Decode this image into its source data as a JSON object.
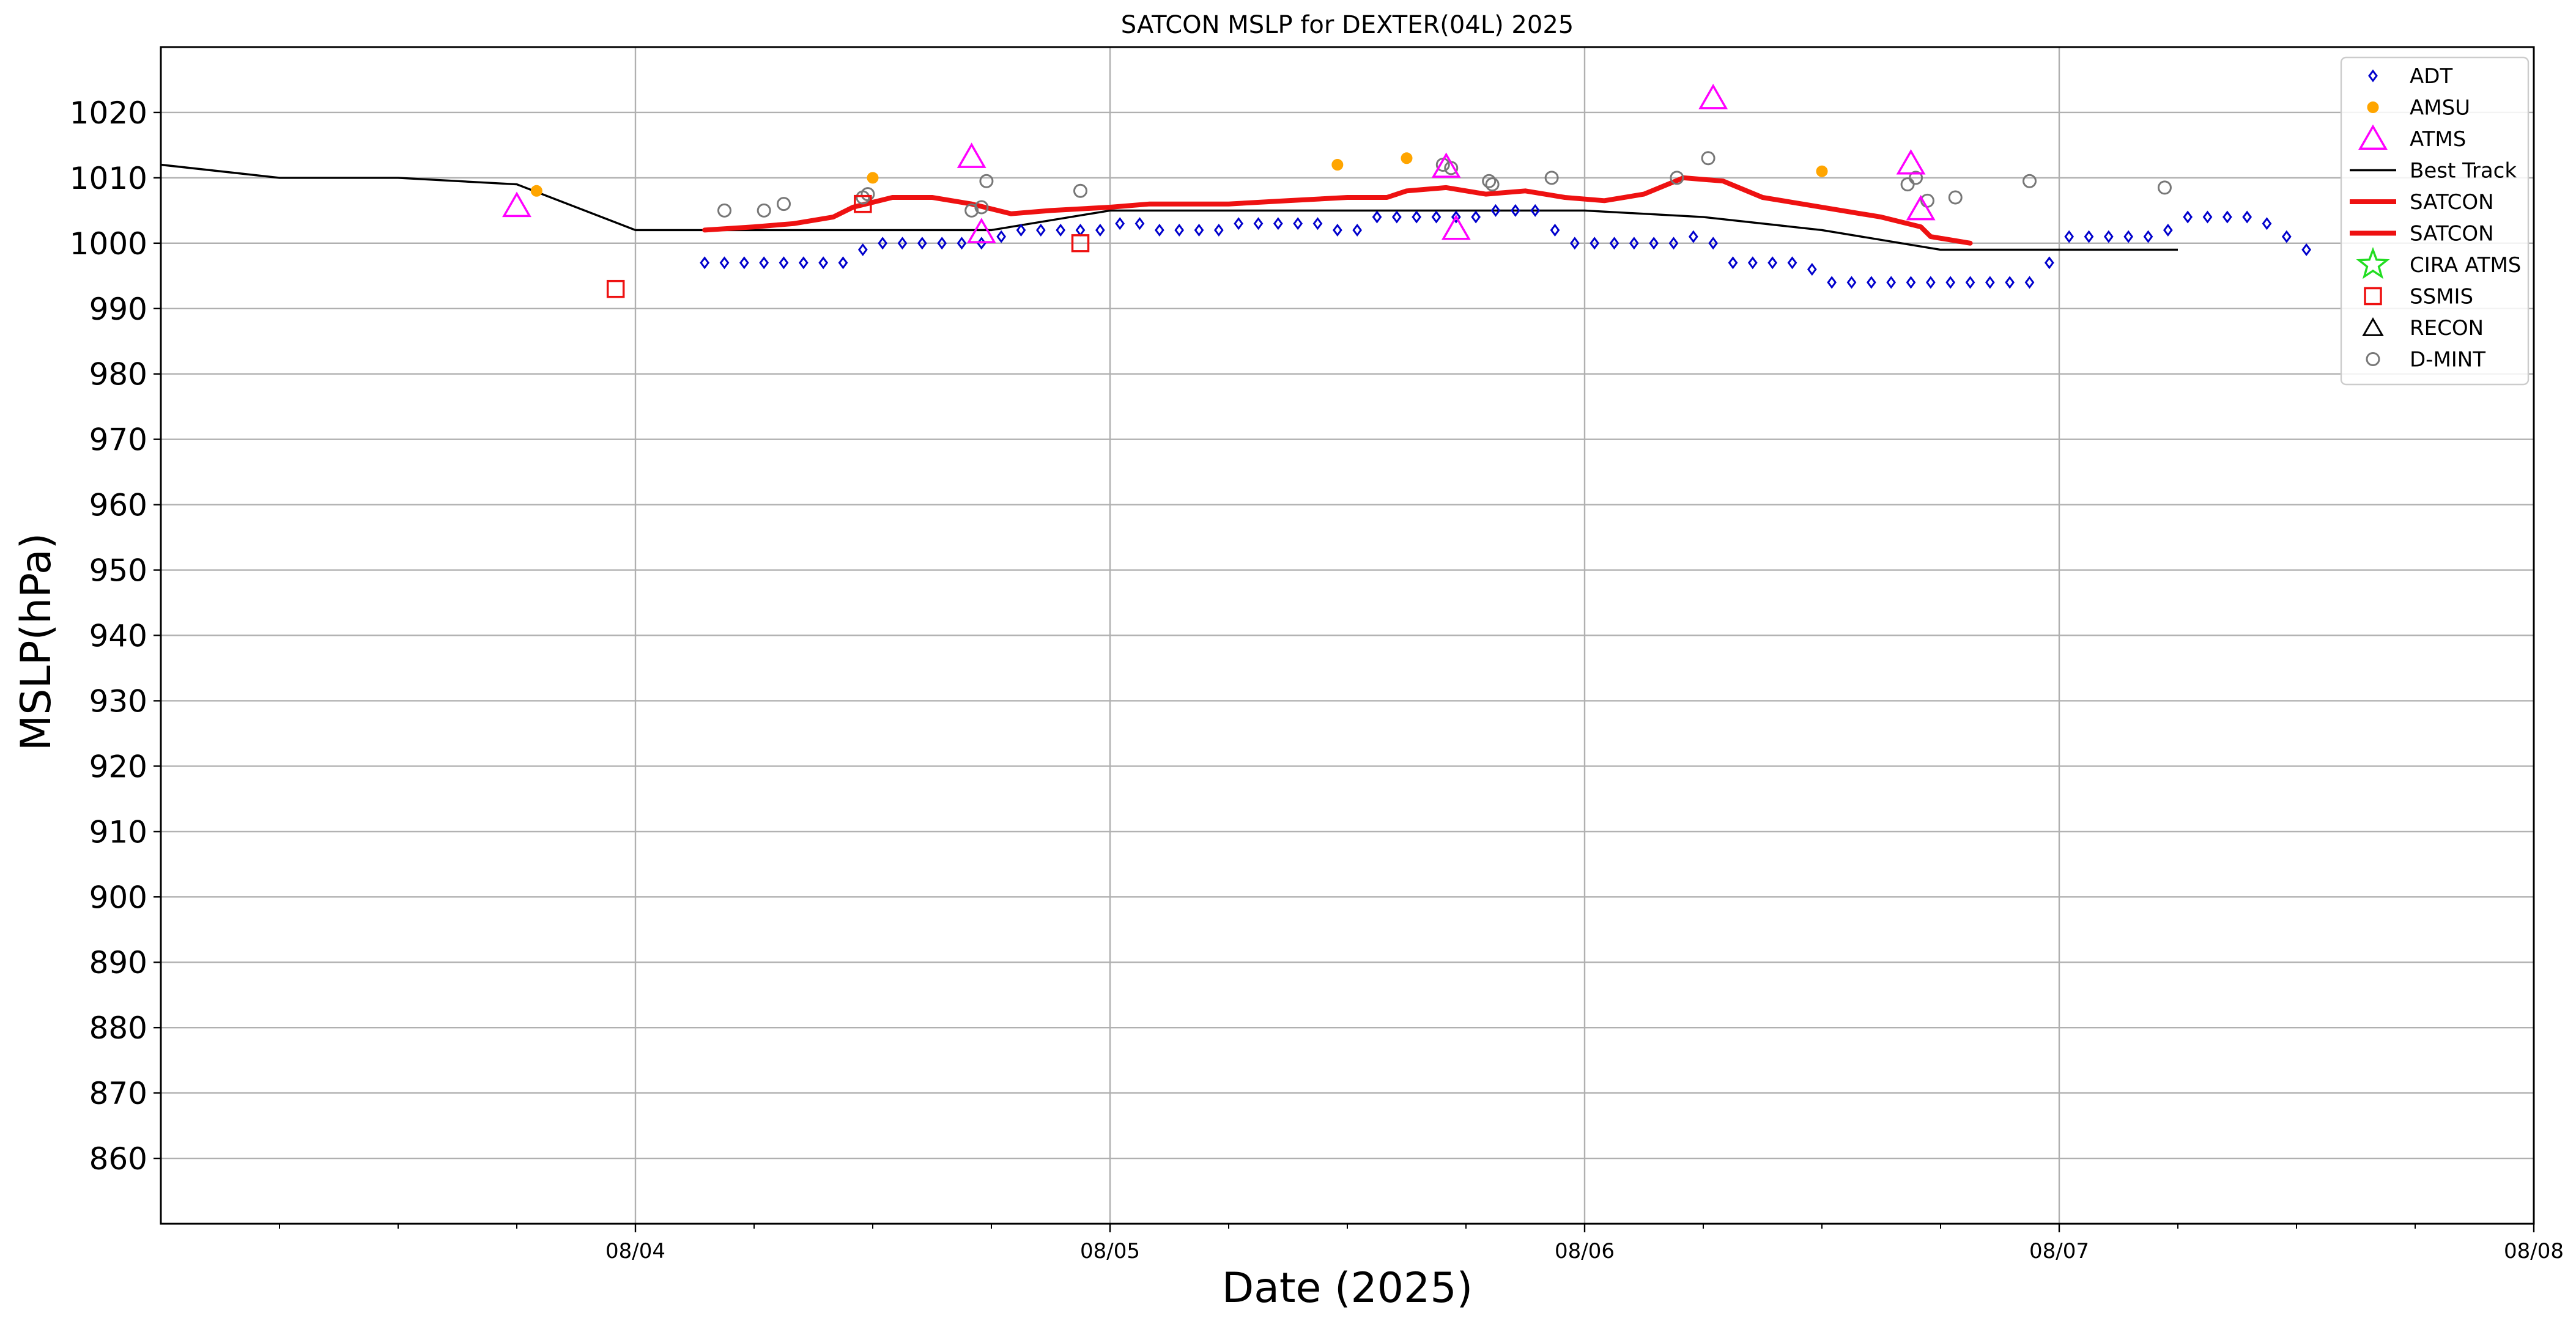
{
  "chart_data": {
    "type": "scatter",
    "title": "SATCON MSLP for DEXTER(04L) 2025",
    "xlabel": "Date (2025)",
    "ylabel": "MSLP(hPa)",
    "x_ticks": [
      "08/04",
      "08/05",
      "08/06",
      "08/07",
      "08/08"
    ],
    "xlim": [
      "2025-08-03T00:00",
      "2025-08-08T00:00"
    ],
    "y_ticks": [
      "860",
      "870",
      "880",
      "890",
      "900",
      "910",
      "920",
      "930",
      "940",
      "950",
      "960",
      "970",
      "980",
      "990",
      "1000",
      "1010",
      "1020"
    ],
    "ylim": [
      850,
      1030
    ],
    "grid": true,
    "legend_position": "upper right",
    "legend": [
      "ADT",
      "AMSU",
      "ATMS",
      "Best Track",
      "SATCON",
      "SATCON",
      "CIRA ATMS",
      "SSMIS",
      "RECON",
      "D-MINT"
    ],
    "colors": {
      "ADT": "#0000cc",
      "AMSU": "#ffa500",
      "ATMS": "#ff00ff",
      "Best Track": "#000000",
      "SATCON": "#ee1111",
      "CIRA ATMS": "#22dd22",
      "SSMIS": "#ee1111",
      "RECON": "#000000",
      "D-MINT": "#777777"
    },
    "series": {
      "best_track": [
        [
          "2025-08-03T00:00",
          1012
        ],
        [
          "2025-08-03T06:00",
          1010
        ],
        [
          "2025-08-03T12:00",
          1010
        ],
        [
          "2025-08-03T18:00",
          1009
        ],
        [
          "2025-08-04T00:00",
          1002
        ],
        [
          "2025-08-04T06:00",
          1002
        ],
        [
          "2025-08-04T12:00",
          1002
        ],
        [
          "2025-08-04T18:00",
          1002
        ],
        [
          "2025-08-05T00:00",
          1005
        ],
        [
          "2025-08-05T06:00",
          1005
        ],
        [
          "2025-08-05T12:00",
          1005
        ],
        [
          "2025-08-05T18:00",
          1005
        ],
        [
          "2025-08-06T00:00",
          1005
        ],
        [
          "2025-08-06T06:00",
          1004
        ],
        [
          "2025-08-06T12:00",
          1002
        ],
        [
          "2025-08-06T18:00",
          999
        ],
        [
          "2025-08-07T00:00",
          999
        ],
        [
          "2025-08-07T06:00",
          999
        ]
      ],
      "satcon": [
        [
          "2025-08-04T03:30",
          1002
        ],
        [
          "2025-08-04T06:00",
          1002.5
        ],
        [
          "2025-08-04T08:00",
          1003
        ],
        [
          "2025-08-04T10:00",
          1004
        ],
        [
          "2025-08-04T11:00",
          1005.5
        ],
        [
          "2025-08-04T13:00",
          1007
        ],
        [
          "2025-08-04T15:00",
          1007
        ],
        [
          "2025-08-04T17:00",
          1006
        ],
        [
          "2025-08-04T19:00",
          1004.5
        ],
        [
          "2025-08-04T21:00",
          1005
        ],
        [
          "2025-08-05T00:00",
          1005.5
        ],
        [
          "2025-08-05T02:00",
          1006
        ],
        [
          "2025-08-05T06:00",
          1006
        ],
        [
          "2025-08-05T09:00",
          1006.5
        ],
        [
          "2025-08-05T12:00",
          1007
        ],
        [
          "2025-08-05T14:00",
          1007
        ],
        [
          "2025-08-05T15:00",
          1008
        ],
        [
          "2025-08-05T17:00",
          1008.5
        ],
        [
          "2025-08-05T19:00",
          1007.5
        ],
        [
          "2025-08-05T21:00",
          1008
        ],
        [
          "2025-08-05T23:00",
          1007
        ],
        [
          "2025-08-06T01:00",
          1006.5
        ],
        [
          "2025-08-06T03:00",
          1007.5
        ],
        [
          "2025-08-06T05:00",
          1010
        ],
        [
          "2025-08-06T07:00",
          1009.5
        ],
        [
          "2025-08-06T09:00",
          1007
        ],
        [
          "2025-08-06T11:00",
          1006
        ],
        [
          "2025-08-06T13:00",
          1005
        ],
        [
          "2025-08-06T15:00",
          1004
        ],
        [
          "2025-08-06T17:00",
          1002.5
        ],
        [
          "2025-08-06T17:30",
          1001
        ],
        [
          "2025-08-06T19:30",
          1000
        ]
      ],
      "adt": [
        [
          "2025-08-04T03:30",
          997
        ],
        [
          "2025-08-04T04:30",
          997
        ],
        [
          "2025-08-04T05:30",
          997
        ],
        [
          "2025-08-04T06:30",
          997
        ],
        [
          "2025-08-04T07:30",
          997
        ],
        [
          "2025-08-04T08:30",
          997
        ],
        [
          "2025-08-04T09:30",
          997
        ],
        [
          "2025-08-04T10:30",
          997
        ],
        [
          "2025-08-04T11:30",
          999
        ],
        [
          "2025-08-04T12:30",
          1000
        ],
        [
          "2025-08-04T13:30",
          1000
        ],
        [
          "2025-08-04T14:30",
          1000
        ],
        [
          "2025-08-04T15:30",
          1000
        ],
        [
          "2025-08-04T16:30",
          1000
        ],
        [
          "2025-08-04T17:30",
          1000
        ],
        [
          "2025-08-04T18:30",
          1001
        ],
        [
          "2025-08-04T19:30",
          1002
        ],
        [
          "2025-08-04T20:30",
          1002
        ],
        [
          "2025-08-04T21:30",
          1002
        ],
        [
          "2025-08-04T22:30",
          1002
        ],
        [
          "2025-08-04T23:30",
          1002
        ],
        [
          "2025-08-05T00:30",
          1003
        ],
        [
          "2025-08-05T01:30",
          1003
        ],
        [
          "2025-08-05T02:30",
          1002
        ],
        [
          "2025-08-05T03:30",
          1002
        ],
        [
          "2025-08-05T04:30",
          1002
        ],
        [
          "2025-08-05T05:30",
          1002
        ],
        [
          "2025-08-05T06:30",
          1003
        ],
        [
          "2025-08-05T07:30",
          1003
        ],
        [
          "2025-08-05T08:30",
          1003
        ],
        [
          "2025-08-05T09:30",
          1003
        ],
        [
          "2025-08-05T10:30",
          1003
        ],
        [
          "2025-08-05T11:30",
          1002
        ],
        [
          "2025-08-05T12:30",
          1002
        ],
        [
          "2025-08-05T13:30",
          1004
        ],
        [
          "2025-08-05T14:30",
          1004
        ],
        [
          "2025-08-05T15:30",
          1004
        ],
        [
          "2025-08-05T16:30",
          1004
        ],
        [
          "2025-08-05T17:30",
          1004
        ],
        [
          "2025-08-05T18:30",
          1004
        ],
        [
          "2025-08-05T19:30",
          1005
        ],
        [
          "2025-08-05T20:30",
          1005
        ],
        [
          "2025-08-05T21:30",
          1005
        ],
        [
          "2025-08-05T22:30",
          1002
        ],
        [
          "2025-08-05T23:30",
          1000
        ],
        [
          "2025-08-06T00:30",
          1000
        ],
        [
          "2025-08-06T01:30",
          1000
        ],
        [
          "2025-08-06T02:30",
          1000
        ],
        [
          "2025-08-06T03:30",
          1000
        ],
        [
          "2025-08-06T04:30",
          1000
        ],
        [
          "2025-08-06T05:30",
          1001
        ],
        [
          "2025-08-06T06:30",
          1000
        ],
        [
          "2025-08-06T07:30",
          997
        ],
        [
          "2025-08-06T08:30",
          997
        ],
        [
          "2025-08-06T09:30",
          997
        ],
        [
          "2025-08-06T10:30",
          997
        ],
        [
          "2025-08-06T11:30",
          996
        ],
        [
          "2025-08-06T12:30",
          994
        ],
        [
          "2025-08-06T13:30",
          994
        ],
        [
          "2025-08-06T14:30",
          994
        ],
        [
          "2025-08-06T15:30",
          994
        ],
        [
          "2025-08-06T16:30",
          994
        ],
        [
          "2025-08-06T17:30",
          994
        ],
        [
          "2025-08-06T18:30",
          994
        ],
        [
          "2025-08-06T19:30",
          994
        ],
        [
          "2025-08-06T20:30",
          994
        ],
        [
          "2025-08-06T21:30",
          994
        ],
        [
          "2025-08-06T22:30",
          994
        ],
        [
          "2025-08-06T23:30",
          997
        ],
        [
          "2025-08-07T00:30",
          1001
        ],
        [
          "2025-08-07T01:30",
          1001
        ],
        [
          "2025-08-07T02:30",
          1001
        ],
        [
          "2025-08-07T03:30",
          1001
        ],
        [
          "2025-08-07T04:30",
          1001
        ],
        [
          "2025-08-07T05:30",
          1002
        ],
        [
          "2025-08-07T06:30",
          1004
        ],
        [
          "2025-08-07T07:30",
          1004
        ],
        [
          "2025-08-07T08:30",
          1004
        ],
        [
          "2025-08-07T09:30",
          1004
        ],
        [
          "2025-08-07T10:30",
          1003
        ],
        [
          "2025-08-07T11:30",
          1001
        ],
        [
          "2025-08-07T12:30",
          999
        ]
      ],
      "amsu": [
        [
          "2025-08-03T19:00",
          1008
        ],
        [
          "2025-08-04T12:00",
          1010
        ],
        [
          "2025-08-05T11:30",
          1012
        ],
        [
          "2025-08-05T15:00",
          1013
        ],
        [
          "2025-08-06T12:00",
          1011
        ]
      ],
      "atms": [
        [
          "2025-08-03T18:00",
          1005.5
        ],
        [
          "2025-08-04T17:00",
          1013
        ],
        [
          "2025-08-04T17:30",
          1001.5
        ],
        [
          "2025-08-05T17:00",
          1011.5
        ],
        [
          "2025-08-05T17:30",
          1002
        ],
        [
          "2025-08-06T06:30",
          1022
        ],
        [
          "2025-08-06T16:30",
          1012
        ],
        [
          "2025-08-06T17:00",
          1005
        ]
      ],
      "ssmis": [
        [
          "2025-08-03T23:00",
          993
        ],
        [
          "2025-08-04T11:30",
          1006
        ],
        [
          "2025-08-04T22:30",
          1000
        ]
      ],
      "dmint": [
        [
          "2025-08-04T04:30",
          1005
        ],
        [
          "2025-08-04T06:30",
          1005
        ],
        [
          "2025-08-04T07:30",
          1006
        ],
        [
          "2025-08-04T11:30",
          1007
        ],
        [
          "2025-08-04T11:45",
          1007.5
        ],
        [
          "2025-08-04T17:00",
          1005
        ],
        [
          "2025-08-04T17:30",
          1005.5
        ],
        [
          "2025-08-04T17:45",
          1009.5
        ],
        [
          "2025-08-04T22:30",
          1008
        ],
        [
          "2025-08-05T16:50",
          1012
        ],
        [
          "2025-08-05T17:15",
          1011.5
        ],
        [
          "2025-08-05T19:10",
          1009.5
        ],
        [
          "2025-08-05T19:20",
          1009
        ],
        [
          "2025-08-05T22:20",
          1010
        ],
        [
          "2025-08-06T04:40",
          1010
        ],
        [
          "2025-08-06T06:15",
          1013
        ],
        [
          "2025-08-06T16:20",
          1009
        ],
        [
          "2025-08-06T16:45",
          1010
        ],
        [
          "2025-08-06T17:20",
          1006.5
        ],
        [
          "2025-08-06T18:45",
          1007
        ],
        [
          "2025-08-06T22:30",
          1009.5
        ],
        [
          "2025-08-07T05:20",
          1008.5
        ]
      ]
    }
  }
}
